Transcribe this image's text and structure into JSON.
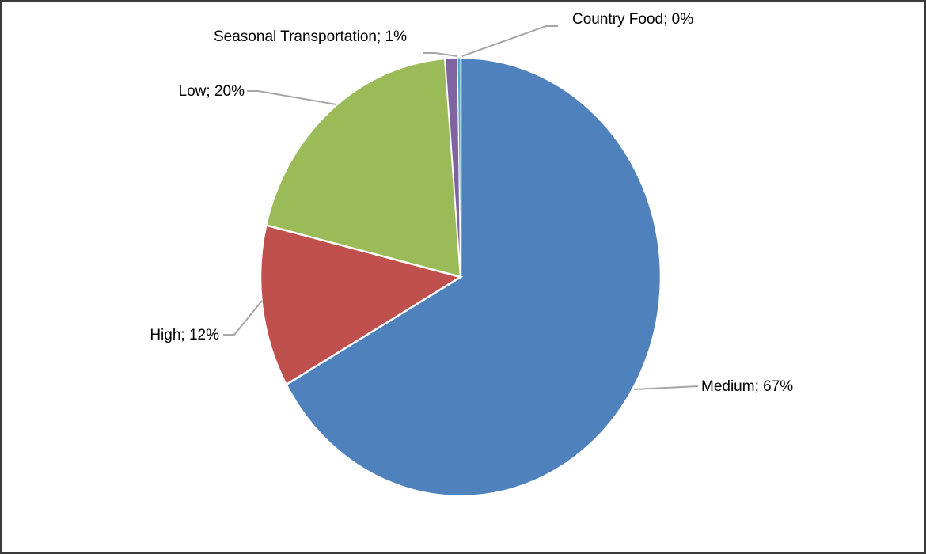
{
  "chart_data": {
    "type": "pie",
    "title": "",
    "label_format": "{name}; {pct}%",
    "slices": [
      {
        "name": "Medium",
        "value": 67,
        "label": "Medium; 67%",
        "color": "#4F81BD"
      },
      {
        "name": "High",
        "value": 12,
        "label": "High; 12%",
        "color": "#C0504D"
      },
      {
        "name": "Low",
        "value": 20,
        "label": "Low; 20%",
        "color": "#9BBB59"
      },
      {
        "name": "Seasonal Transportation",
        "value": 1,
        "label": "Seasonal Transportation; 1%",
        "color": "#8064A2"
      },
      {
        "name": "Country Food",
        "value": 0,
        "label": "Country Food; 0%",
        "color": "#4BACC6"
      }
    ],
    "start_angle_deg": 0,
    "direction": "clockwise",
    "legend": "none (data labels with leader lines)"
  }
}
